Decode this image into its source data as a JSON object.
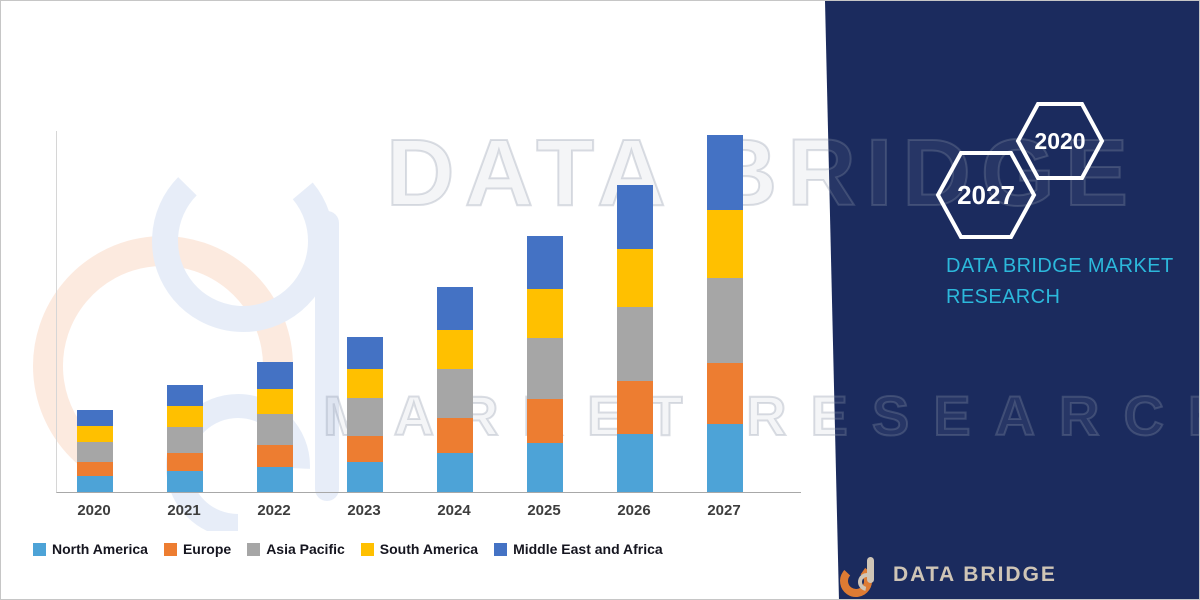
{
  "branding": {
    "hexagon_year_left": "2027",
    "hexagon_year_right": "2020",
    "panel_title_line1": "DATA BRIDGE MARKET",
    "panel_title_line2": "RESEARCH",
    "footer_logo_text": "DATA BRIDGE",
    "accent_teal": "#2CB8DB",
    "panel_navy": "#1B2B5E"
  },
  "watermarks": {
    "line1": "DATA BRIDGE",
    "line2": "MARKET RESEARCH"
  },
  "chart_data": {
    "type": "bar",
    "stacked": true,
    "title": "",
    "xlabel": "",
    "ylabel": "",
    "categories": [
      "2020",
      "2021",
      "2022",
      "2023",
      "2024",
      "2025",
      "2026",
      "2027"
    ],
    "series": [
      {
        "name": "North America",
        "color": "#4DA3D7",
        "values": [
          2.0,
          2.6,
          3.1,
          3.7,
          4.9,
          6.1,
          7.3,
          8.5
        ]
      },
      {
        "name": "Europe",
        "color": "#ED7D31",
        "values": [
          1.8,
          2.3,
          2.8,
          3.3,
          4.4,
          5.5,
          6.6,
          7.6
        ]
      },
      {
        "name": "Asia Pacific",
        "color": "#A6A6A6",
        "values": [
          2.5,
          3.2,
          3.9,
          4.7,
          6.1,
          7.7,
          9.2,
          10.7
        ]
      },
      {
        "name": "South America",
        "color": "#FFC000",
        "values": [
          2.0,
          2.6,
          3.1,
          3.7,
          4.9,
          6.1,
          7.3,
          8.5
        ]
      },
      {
        "name": "Middle East and Africa",
        "color": "#4472C4",
        "values": [
          2.0,
          2.7,
          3.4,
          4.0,
          5.3,
          6.6,
          8.0,
          9.3
        ]
      }
    ],
    "totals": [
      10.3,
      13.4,
      16.3,
      19.4,
      25.6,
      32.0,
      38.4,
      44.6
    ],
    "ylim": [
      0,
      50
    ],
    "grid": false,
    "axes_labeled": false,
    "legend_position": "bottom"
  }
}
